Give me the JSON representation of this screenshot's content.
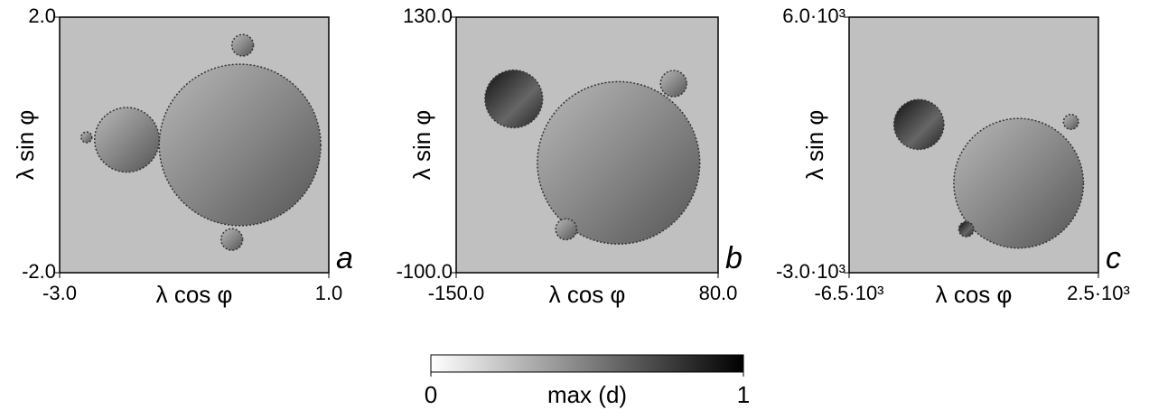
{
  "chart_data": [
    {
      "type": "image",
      "panel": "a",
      "xlabel": "λ cos φ",
      "ylabel": "λ sin φ",
      "xlim": [
        -3,
        1
      ],
      "ylim": [
        -2,
        2
      ],
      "xticks": [
        {
          "value": -3,
          "label": "-3.0"
        },
        {
          "value": 1,
          "label": "1.0"
        }
      ],
      "yticks": [
        {
          "value": -2,
          "label": "-2.0"
        },
        {
          "value": 2,
          "label": "2.0"
        }
      ]
    },
    {
      "type": "image",
      "panel": "b",
      "xlabel": "λ cos φ",
      "ylabel": "λ sin φ",
      "xlim": [
        -150,
        80
      ],
      "ylim": [
        -100,
        130
      ],
      "xticks": [
        {
          "value": -150,
          "label": "-150.0"
        },
        {
          "value": 80,
          "label": "80.0"
        }
      ],
      "yticks": [
        {
          "value": -100,
          "label": "-100.0"
        },
        {
          "value": 130,
          "label": "130.0"
        }
      ]
    },
    {
      "type": "image",
      "panel": "c",
      "xlabel": "λ cos φ",
      "ylabel": "λ sin φ",
      "xlim": [
        -6500,
        2500
      ],
      "ylim": [
        -3000,
        6000
      ],
      "xticks": [
        {
          "value": -6500,
          "label": "-6.5·10³"
        },
        {
          "value": 2500,
          "label": "2.5·10³"
        }
      ],
      "yticks": [
        {
          "value": -3000,
          "label": "-3.0·10³"
        },
        {
          "value": 6000,
          "label": "6.0·10³"
        }
      ]
    },
    {
      "type": "colorbar",
      "label": "max (d)",
      "lim": [
        0,
        1
      ],
      "ticks": [
        0,
        1
      ]
    }
  ]
}
